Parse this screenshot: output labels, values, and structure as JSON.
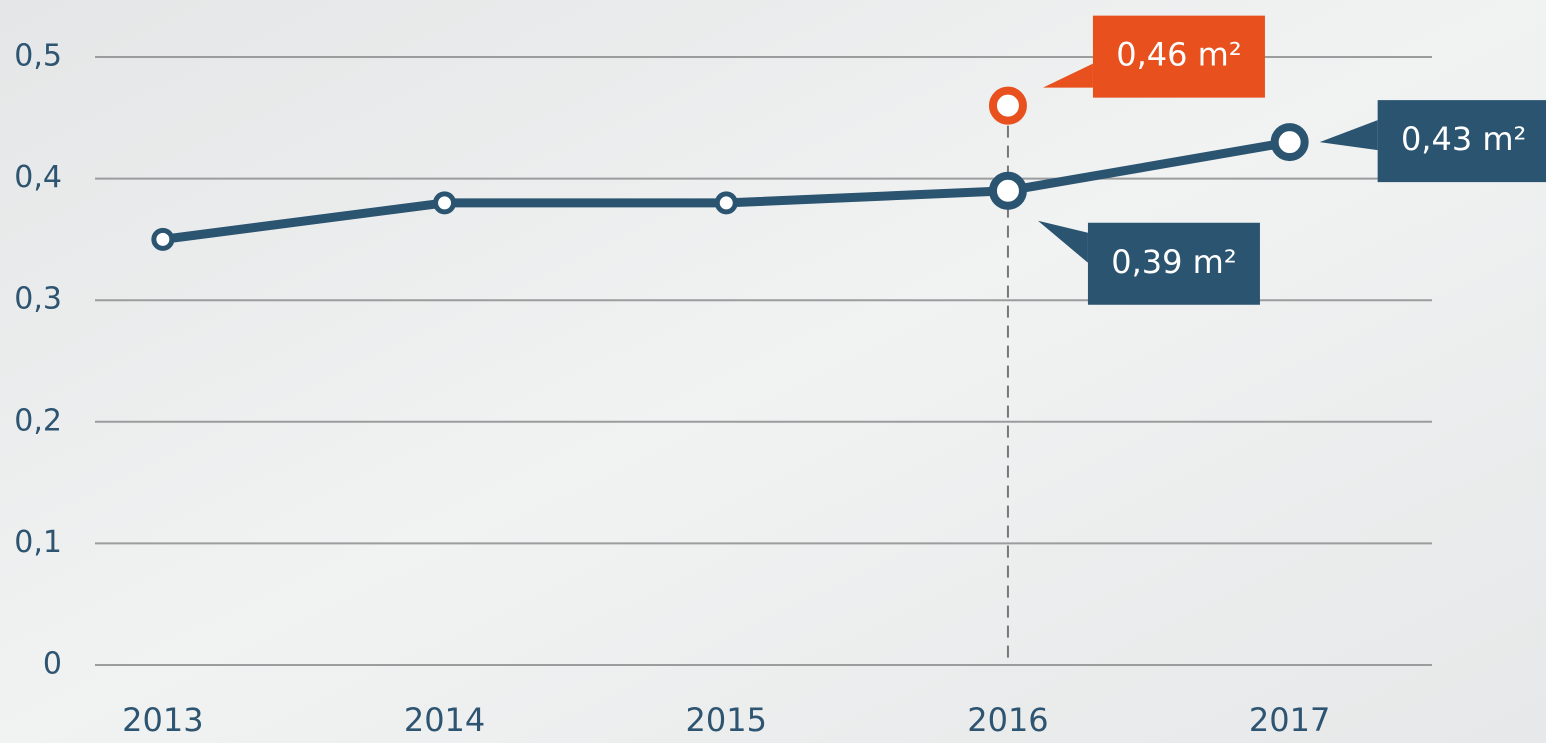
{
  "chart_data": {
    "type": "line",
    "categories": [
      "2013",
      "2014",
      "2015",
      "2016",
      "2017"
    ],
    "series": [
      {
        "color": "#2b5470",
        "values": [
          0.35,
          0.38,
          0.38,
          0.39,
          0.43
        ],
        "value_labels": [
          null,
          null,
          null,
          "0,39 m²",
          "0,43 m²"
        ]
      },
      {
        "color": "#e8501e",
        "values": [
          null,
          null,
          null,
          0.46,
          null
        ],
        "value_labels": [
          null,
          null,
          null,
          "0,46 m²",
          null
        ]
      }
    ],
    "ylim": [
      0,
      0.5
    ],
    "yticks": [
      0,
      {
        "value": 0.1,
        "label": "0,1"
      },
      {
        "value": 0.2,
        "label": "0,2"
      },
      {
        "value": 0.3,
        "label": "0,3"
      },
      {
        "value": 0.4,
        "label": "0,4"
      },
      {
        "value": 0.5,
        "label": "0,5"
      }
    ],
    "grid": true
  }
}
